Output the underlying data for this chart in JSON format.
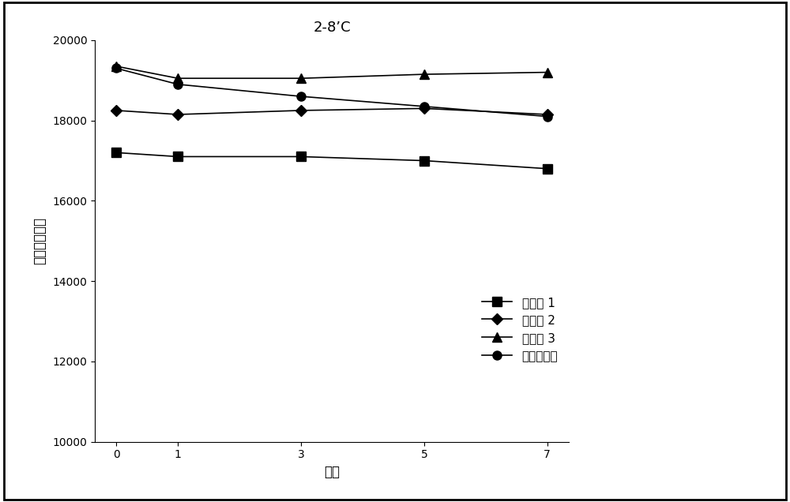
{
  "title": "2-8’C",
  "xlabel": "天数",
  "ylabel": "全自吸光度值",
  "x": [
    0,
    1,
    3,
    5,
    7
  ],
  "series": [
    {
      "label": "实施例 1",
      "values": [
        17200,
        17100,
        17100,
        17000,
        16800
      ],
      "color": "#000000",
      "marker": "s",
      "linestyle": "-"
    },
    {
      "label": "实施例 2",
      "values": [
        18250,
        18150,
        18250,
        18300,
        18150
      ],
      "color": "#000000",
      "marker": "D",
      "linestyle": "-"
    },
    {
      "label": "实施例 3",
      "values": [
        19350,
        19050,
        19050,
        19150,
        19200
      ],
      "color": "#000000",
      "marker": "^",
      "linestyle": "-"
    },
    {
      "label": "对比实施例",
      "values": [
        19300,
        18900,
        18600,
        18350,
        18100
      ],
      "color": "#000000",
      "marker": "o",
      "linestyle": "-"
    }
  ],
  "ylim": [
    10000,
    20000
  ],
  "yticks": [
    10000,
    12000,
    14000,
    16000,
    18000,
    20000
  ],
  "xticks": [
    0,
    1,
    3,
    5,
    7
  ],
  "background_color": "#ffffff",
  "figsize": [
    10.0,
    6.36
  ],
  "dpi": 100
}
